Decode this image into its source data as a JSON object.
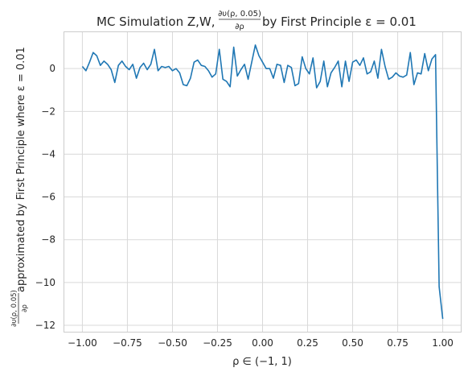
{
  "chart_data": {
    "type": "line",
    "title": {
      "prefix": "MC Simulation Z,W, ",
      "frac_num": "∂υ(ρ, 0.05)",
      "frac_den": "∂ρ",
      "suffix": " by First Principle ε = 0.01"
    },
    "xlabel": "ρ ∈ (−1, 1)",
    "ylabel": {
      "frac_num": "∂υ(ρ, 0.05)",
      "frac_den": "∂ρ",
      "text": " approximated by First Principle where ε = 0.01"
    },
    "xlim": [
      -1.1,
      1.1
    ],
    "ylim": [
      -12.3,
      1.7
    ],
    "x_ticks": [
      -1.0,
      -0.75,
      -0.5,
      -0.25,
      0.0,
      0.25,
      0.5,
      0.75,
      1.0
    ],
    "x_tick_labels": [
      "−1.00",
      "−0.75",
      "−0.50",
      "−0.25",
      "0.00",
      "0.25",
      "0.50",
      "0.75",
      "1.00"
    ],
    "y_ticks": [
      0,
      -2,
      -4,
      -6,
      -8,
      -10,
      -12
    ],
    "y_tick_labels": [
      "0",
      "−2",
      "−4",
      "−6",
      "−8",
      "−10",
      "−12"
    ],
    "grid": true,
    "series": [
      {
        "color": "#1f77b4",
        "x": [
          -1.0,
          -0.98,
          -0.96,
          -0.94,
          -0.92,
          -0.9,
          -0.88,
          -0.86,
          -0.84,
          -0.82,
          -0.8,
          -0.78,
          -0.76,
          -0.74,
          -0.72,
          -0.7,
          -0.68,
          -0.66,
          -0.64,
          -0.62,
          -0.6,
          -0.58,
          -0.56,
          -0.54,
          -0.52,
          -0.5,
          -0.48,
          -0.46,
          -0.44,
          -0.42,
          -0.4,
          -0.38,
          -0.36,
          -0.34,
          -0.32,
          -0.3,
          -0.28,
          -0.26,
          -0.24,
          -0.22,
          -0.2,
          -0.18,
          -0.16,
          -0.14,
          -0.12,
          -0.1,
          -0.08,
          -0.06,
          -0.04,
          -0.02,
          0.0,
          0.02,
          0.04,
          0.06,
          0.08,
          0.1,
          0.12,
          0.14,
          0.16,
          0.18,
          0.2,
          0.22,
          0.24,
          0.26,
          0.28,
          0.3,
          0.32,
          0.34,
          0.36,
          0.38,
          0.4,
          0.42,
          0.44,
          0.46,
          0.48,
          0.5,
          0.52,
          0.54,
          0.56,
          0.58,
          0.6,
          0.62,
          0.64,
          0.66,
          0.68,
          0.7,
          0.72,
          0.74,
          0.76,
          0.78,
          0.8,
          0.82,
          0.84,
          0.86,
          0.88,
          0.9,
          0.92,
          0.94,
          0.96,
          0.98,
          1.0
        ],
        "y": [
          0.1,
          -0.1,
          0.3,
          0.75,
          0.6,
          0.15,
          0.35,
          0.2,
          -0.05,
          -0.65,
          0.15,
          0.35,
          0.1,
          -0.05,
          0.2,
          -0.45,
          0.05,
          0.25,
          -0.05,
          0.2,
          0.9,
          -0.1,
          0.1,
          0.05,
          0.1,
          -0.1,
          0.0,
          -0.2,
          -0.75,
          -0.8,
          -0.45,
          0.3,
          0.4,
          0.15,
          0.1,
          -0.1,
          -0.4,
          -0.25,
          0.9,
          -0.5,
          -0.6,
          -0.85,
          1.0,
          -0.35,
          -0.05,
          0.2,
          -0.5,
          0.3,
          1.1,
          0.6,
          0.3,
          0.0,
          0.0,
          -0.45,
          0.2,
          0.15,
          -0.65,
          0.15,
          0.05,
          -0.8,
          -0.7,
          0.55,
          0.0,
          -0.25,
          0.5,
          -0.9,
          -0.6,
          0.35,
          -0.85,
          -0.2,
          0.05,
          0.35,
          -0.85,
          0.35,
          -0.6,
          0.3,
          0.4,
          0.15,
          0.5,
          -0.25,
          -0.15,
          0.35,
          -0.45,
          0.9,
          0.1,
          -0.5,
          -0.4,
          -0.2,
          -0.35,
          -0.4,
          -0.3,
          0.75,
          -0.75,
          -0.2,
          -0.25,
          0.7,
          -0.1,
          0.45,
          0.65,
          -10.2,
          -11.7
        ]
      }
    ]
  }
}
